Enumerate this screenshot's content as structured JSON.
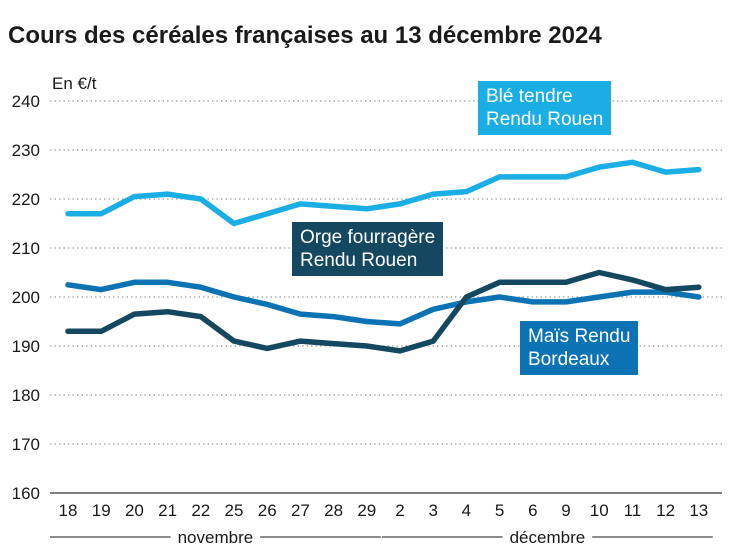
{
  "chart_data": {
    "type": "line",
    "title": "Cours des céréales françaises au 13 décembre 2024",
    "ylabel": "En €/t",
    "xlabel": "",
    "ylim": [
      160,
      240
    ],
    "yticks": [
      160,
      170,
      180,
      190,
      200,
      210,
      220,
      230,
      240
    ],
    "categories": [
      "18",
      "19",
      "20",
      "21",
      "22",
      "25",
      "26",
      "27",
      "28",
      "29",
      "2",
      "3",
      "4",
      "5",
      "6",
      "9",
      "10",
      "11",
      "12",
      "13"
    ],
    "month_groups": [
      {
        "label": "novembre",
        "from": 0,
        "to": 9
      },
      {
        "label": "décembre",
        "from": 10,
        "to": 19
      }
    ],
    "grid": "horizontal dotted",
    "series": [
      {
        "name": "Blé tendre Rendu Rouen",
        "label_lines": [
          "Blé tendre",
          "Rendu Rouen"
        ],
        "color": "#1aaee5",
        "values": [
          217,
          217,
          220.5,
          221,
          220,
          215,
          217,
          219,
          218.5,
          218,
          219,
          221,
          221.5,
          224.5,
          224.5,
          224.5,
          226.5,
          227.5,
          225.5,
          226
        ]
      },
      {
        "name": "Orge fourragère Rendu Rouen",
        "label_lines": [
          "Orge fourragère",
          "Rendu Rouen"
        ],
        "color": "#134860",
        "values": [
          193,
          193,
          196.5,
          197,
          196,
          191,
          189.5,
          191,
          190.5,
          190,
          189,
          191,
          200,
          203,
          203,
          203,
          205,
          203.5,
          201.5,
          202
        ]
      },
      {
        "name": "Maïs Rendu Bordeaux",
        "label_lines": [
          "Maïs Rendu",
          "Bordeaux"
        ],
        "color": "#0b72b4",
        "values": [
          202.5,
          201.5,
          203,
          203,
          202,
          200,
          198.5,
          196.5,
          196,
          195,
          194.5,
          197.5,
          199,
          200,
          199,
          199,
          200,
          201,
          201,
          200
        ]
      }
    ]
  }
}
